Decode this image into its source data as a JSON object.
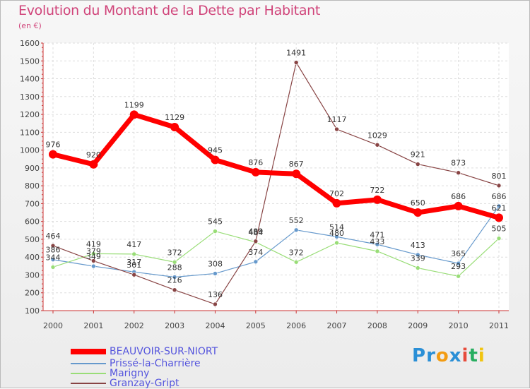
{
  "title": "Evolution du Montant de la Dette par Habitant",
  "unit": "(en €)",
  "logo": {
    "text": "Proxiti",
    "letters": [
      "P",
      "r",
      "o",
      "x",
      "i",
      "t",
      "i"
    ],
    "colors": [
      "#2a8fd6",
      "#2a8fd6",
      "#f39c12",
      "#2a8fd6",
      "#e74c3c",
      "#27ae60",
      "#f1c40f"
    ]
  },
  "chart_data": {
    "type": "line",
    "x": [
      "2000",
      "2001",
      "2002",
      "2003",
      "2004",
      "2005",
      "2006",
      "2007",
      "2008",
      "2009",
      "2010",
      "2011"
    ],
    "ylim": [
      100,
      1600
    ],
    "yticks": [
      100,
      200,
      300,
      400,
      500,
      600,
      700,
      800,
      900,
      1000,
      1100,
      1200,
      1300,
      1400,
      1500,
      1600
    ],
    "grid": true,
    "legend": "bottom-left",
    "series": [
      {
        "name": "BEAUVOIR-SUR-NIORT",
        "color": "#ff0000",
        "values": [
          976,
          920,
          1199,
          1129,
          945,
          876,
          867,
          702,
          722,
          650,
          686,
          621
        ]
      },
      {
        "name": "Prissé-la-Charrière",
        "color": "#6699cc",
        "values": [
          386,
          349,
          317,
          288,
          308,
          374,
          552,
          514,
          471,
          413,
          365,
          686
        ]
      },
      {
        "name": "Marigny",
        "color": "#99dd77",
        "values": [
          344,
          419,
          417,
          372,
          545,
          484,
          372,
          480,
          433,
          339,
          293,
          505
        ]
      },
      {
        "name": "Granzay-Gript",
        "color": "#884444",
        "values": [
          464,
          379,
          301,
          216,
          136,
          489,
          1491,
          1117,
          1029,
          921,
          873,
          801
        ]
      }
    ]
  }
}
